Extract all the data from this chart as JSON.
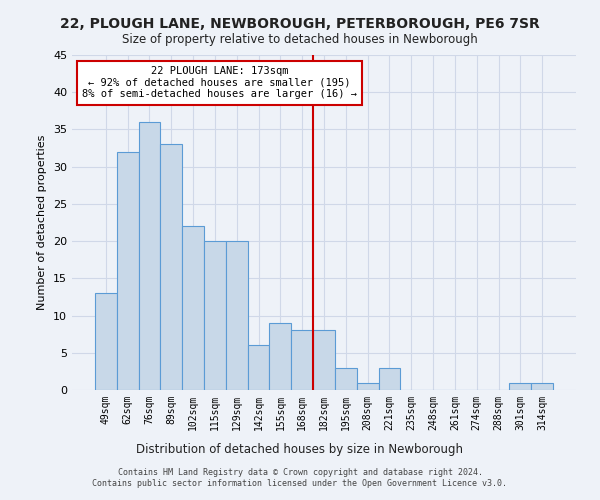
{
  "title": "22, PLOUGH LANE, NEWBOROUGH, PETERBOROUGH, PE6 7SR",
  "subtitle": "Size of property relative to detached houses in Newborough",
  "xlabel": "Distribution of detached houses by size in Newborough",
  "ylabel": "Number of detached properties",
  "footer_line1": "Contains HM Land Registry data © Crown copyright and database right 2024.",
  "footer_line2": "Contains public sector information licensed under the Open Government Licence v3.0.",
  "categories": [
    "49sqm",
    "62sqm",
    "76sqm",
    "89sqm",
    "102sqm",
    "115sqm",
    "129sqm",
    "142sqm",
    "155sqm",
    "168sqm",
    "182sqm",
    "195sqm",
    "208sqm",
    "221sqm",
    "235sqm",
    "248sqm",
    "261sqm",
    "274sqm",
    "288sqm",
    "301sqm",
    "314sqm"
  ],
  "values": [
    13,
    32,
    36,
    33,
    22,
    20,
    20,
    6,
    9,
    8,
    8,
    3,
    1,
    3,
    0,
    0,
    0,
    0,
    0,
    1,
    1
  ],
  "bar_color": "#c8d8e8",
  "bar_edge_color": "#5b9bd5",
  "grid_color": "#d0d8e8",
  "background_color": "#eef2f8",
  "annotation_text": "22 PLOUGH LANE: 173sqm\n← 92% of detached houses are smaller (195)\n8% of semi-detached houses are larger (16) →",
  "annotation_box_color": "#ffffff",
  "annotation_box_edge": "#cc0000",
  "red_line_x": 9.5,
  "ylim": [
    0,
    45
  ],
  "yticks": [
    0,
    5,
    10,
    15,
    20,
    25,
    30,
    35,
    40,
    45
  ]
}
